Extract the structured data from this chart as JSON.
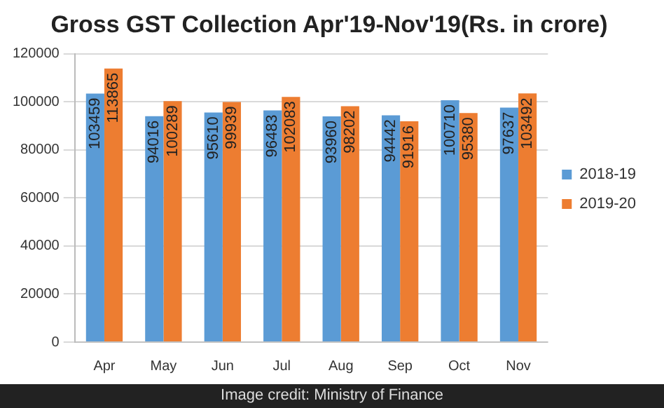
{
  "chart_data": {
    "type": "bar",
    "title": "Gross GST Collection Apr'19-Nov'19(Rs. in crore)",
    "categories": [
      "Apr",
      "May",
      "Jun",
      "Jul",
      "Aug",
      "Sep",
      "Oct",
      "Nov"
    ],
    "series": [
      {
        "name": "2018-19",
        "color": "#5b9bd5",
        "values": [
          103459,
          94016,
          95610,
          96483,
          93960,
          94442,
          100710,
          97637
        ]
      },
      {
        "name": "2019-20",
        "color": "#ed7d31",
        "values": [
          113865,
          100289,
          99939,
          102083,
          98202,
          91916,
          95380,
          103492
        ]
      }
    ],
    "ylim": [
      0,
      120000
    ],
    "yticks": [
      0,
      20000,
      40000,
      60000,
      80000,
      100000,
      120000
    ],
    "grid": "y",
    "legend": "right",
    "data_labels": true,
    "annotations": [
      "Image credit: Ministry of Finance"
    ]
  }
}
